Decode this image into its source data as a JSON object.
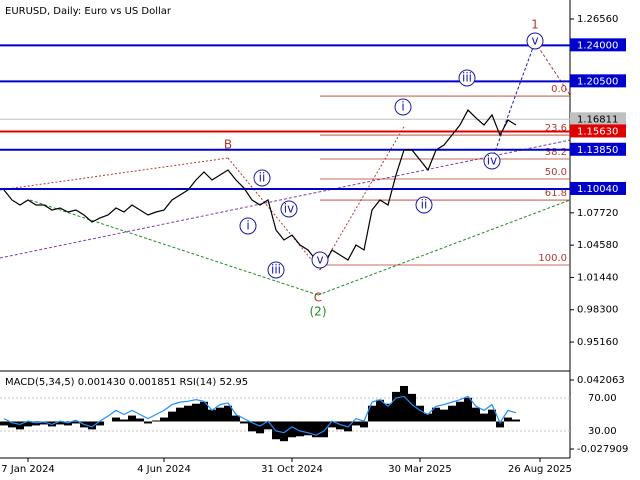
{
  "chart_data": [
    {
      "type": "line",
      "title": "EURUSD, Daily:  Euro vs US Dollar",
      "categories": [
        null,
        null,
        null,
        "7 Jan 2024",
        null,
        null,
        null,
        null,
        null,
        null,
        null,
        null,
        null,
        null,
        null,
        null,
        null,
        null,
        null,
        null,
        "4 Jun 2024",
        null,
        null,
        null,
        null,
        null,
        null,
        null,
        null,
        null,
        null,
        null,
        null,
        null,
        null,
        null,
        "31 Oct 2024",
        null,
        null,
        null,
        null,
        null,
        null,
        null,
        null,
        null,
        null,
        null,
        null,
        null,
        null,
        null,
        "30 Mar 2025",
        null,
        null,
        null,
        null,
        null,
        null,
        null,
        null,
        null,
        null,
        null,
        null,
        null,
        null,
        "26 Aug 2025"
      ],
      "values": [
        1.0994,
        1.0897,
        1.0848,
        1.0897,
        1.0848,
        1.0848,
        1.0799,
        1.0819,
        1.078,
        1.0799,
        1.0751,
        1.0683,
        1.0722,
        1.0751,
        1.0819,
        1.078,
        1.0848,
        1.0799,
        1.0751,
        1.078,
        1.0799,
        1.0897,
        1.0945,
        1.0994,
        1.1091,
        1.1169,
        1.1091,
        1.114,
        1.1188,
        1.1091,
        1.1013,
        1.0897,
        1.0848,
        1.0897,
        1.0605,
        1.0508,
        1.0556,
        1.0459,
        1.0411,
        1.0313,
        1.0265,
        1.0411,
        1.0362,
        1.0313,
        1.0459,
        1.0411,
        1.0799,
        1.0897,
        1.0848,
        1.114,
        1.1383,
        1.1383,
        1.1285,
        1.1188,
        1.1383,
        1.1431,
        1.1528,
        1.1626,
        1.1771,
        1.1694,
        1.1626,
        1.1723,
        1.1528,
        1.1674,
        1.1626,
        null,
        null,
        null
      ],
      "color": "#000000",
      "ylim": [
        0.92443,
        1.28407
      ],
      "yticks": [
        {
          "value": 1.2656,
          "label": "1.26560"
        },
        {
          "value": 1.0772,
          "label": "1.07720"
        },
        {
          "value": 1.0458,
          "label": "1.04580"
        },
        {
          "value": 1.0144,
          "label": "1.01440"
        },
        {
          "value": 0.983,
          "label": "0.98300"
        },
        {
          "value": 0.9516,
          "label": "0.95160"
        }
      ],
      "levels": [
        {
          "value": 1.24,
          "label": "1.24000",
          "color": "#0000cd"
        },
        {
          "value": 1.205,
          "label": "1.20500",
          "color": "#0000cd"
        },
        {
          "value": 1.1563,
          "label": "1.15630",
          "color": "#e00000"
        },
        {
          "value": 1.1385,
          "label": "1.13850",
          "color": "#0000cd"
        },
        {
          "value": 1.1004,
          "label": "1.10040",
          "color": "#0000cd"
        }
      ],
      "current_price": {
        "value": 1.16811,
        "label": "1.16811"
      },
      "fib_levels": [
        {
          "value": 1.1907,
          "label": "0.0"
        },
        {
          "value": 1.1528,
          "label": "23.6"
        },
        {
          "value": 1.1295,
          "label": "38.2"
        },
        {
          "value": 1.1101,
          "label": "50.0"
        },
        {
          "value": 1.0896,
          "label": "61.8"
        },
        {
          "value": 1.0265,
          "label": "100.0"
        }
      ],
      "annotations": [
        {
          "text": "B",
          "color": "#b03a2e"
        },
        {
          "text": "1",
          "color": "#b03a2e"
        },
        {
          "text": "C",
          "color": "#b03a2e"
        },
        {
          "text": "(2)",
          "color": "#228b22"
        },
        {
          "text": "i",
          "color": "#1a1aa6",
          "circled": true
        },
        {
          "text": "ii",
          "color": "#1a1aa6",
          "circled": true
        },
        {
          "text": "iii",
          "color": "#1a1aa6",
          "circled": true
        },
        {
          "text": "iv",
          "color": "#1a1aa6",
          "circled": true
        },
        {
          "text": "v",
          "color": "#1a1aa6",
          "circled": true
        },
        {
          "text": "i",
          "color": "#1a1aa6",
          "circled": true
        },
        {
          "text": "ii",
          "color": "#1a1aa6",
          "circled": true
        },
        {
          "text": "iii",
          "color": "#1a1aa6",
          "circled": true
        },
        {
          "text": "iv",
          "color": "#1a1aa6",
          "circled": true
        },
        {
          "text": "v",
          "color": "#1a1aa6",
          "circled": true
        }
      ]
    },
    {
      "type": "bar",
      "title": "MACD(5,34,5) 0.001430 0.001851 RSI(14) 52.95",
      "values": [
        -0.004,
        -0.006,
        -0.008,
        -0.005,
        -0.004,
        -0.003,
        -0.005,
        -0.003,
        -0.004,
        -0.002,
        -0.006,
        -0.008,
        -0.004,
        0.0,
        0.004,
        0.002,
        0.006,
        0.003,
        -0.002,
        0.001,
        0.004,
        0.01,
        0.014,
        0.016,
        0.018,
        0.02,
        0.012,
        0.014,
        0.016,
        0.006,
        -0.002,
        -0.01,
        -0.012,
        -0.008,
        -0.018,
        -0.02,
        -0.016,
        -0.015,
        -0.014,
        -0.016,
        -0.016,
        -0.006,
        -0.008,
        -0.01,
        -0.004,
        -0.006,
        0.016,
        0.022,
        0.018,
        0.03,
        0.036,
        0.028,
        0.016,
        0.008,
        0.014,
        0.012,
        0.016,
        0.02,
        0.024,
        0.014,
        0.008,
        0.012,
        -0.006,
        0.004,
        0.002
      ],
      "color": "#000000",
      "ylim": [
        -0.03703,
        0.05018
      ],
      "yticks": [
        0.042063,
        -0.027909
      ],
      "series": [
        {
          "name": "RSI(14)",
          "color": "#1e90ff",
          "axis": "y2",
          "values": [
            45,
            40,
            38,
            42,
            40,
            41,
            38,
            42,
            40,
            43,
            38,
            35,
            42,
            48,
            55,
            50,
            55,
            50,
            45,
            50,
            55,
            62,
            65,
            66,
            68,
            66,
            55,
            62,
            64,
            50,
            45,
            40,
            36,
            42,
            30,
            28,
            35,
            30,
            28,
            25,
            30,
            42,
            38,
            35,
            45,
            42,
            65,
            68,
            60,
            70,
            72,
            62,
            55,
            50,
            60,
            62,
            65,
            68,
            72,
            60,
            55,
            62,
            40,
            55,
            52
          ]
        }
      ],
      "y2lim": [
        -2.7,
        101.5
      ],
      "y2ticks": [
        {
          "value": 70,
          "label": "70.00"
        },
        {
          "value": 30,
          "label": "30.00"
        }
      ]
    }
  ]
}
